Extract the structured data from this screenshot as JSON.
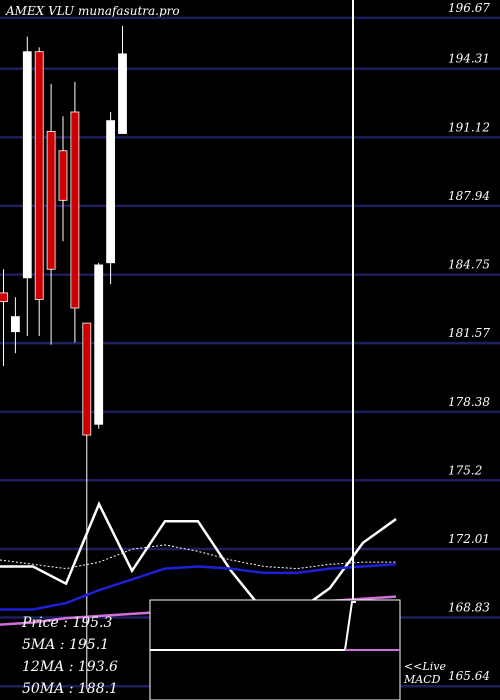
{
  "chart_data": {
    "type": "candlestick",
    "title": "AMEX  VLU munafasutra.pro",
    "y_ticks": [
      196.67,
      194.31,
      191.12,
      187.94,
      184.75,
      181.57,
      178.38,
      175.2,
      172.01,
      168.83,
      165.64
    ],
    "ylim": [
      165.0,
      197.5
    ],
    "grid": true,
    "candles": [
      {
        "open": 183.9,
        "high": 185.0,
        "low": 180.5,
        "close": 183.5
      },
      {
        "open": 182.1,
        "high": 183.7,
        "low": 181.1,
        "close": 182.8
      },
      {
        "open": 184.6,
        "high": 195.8,
        "low": 181.9,
        "close": 195.1
      },
      {
        "open": 195.1,
        "high": 195.3,
        "low": 181.9,
        "close": 183.6
      },
      {
        "open": 191.4,
        "high": 193.6,
        "low": 181.5,
        "close": 185.0
      },
      {
        "open": 190.5,
        "high": 192.1,
        "low": 186.3,
        "close": 188.2
      },
      {
        "open": 192.3,
        "high": 193.7,
        "low": 181.6,
        "close": 183.2
      },
      {
        "open": 182.5,
        "high": 182.5,
        "low": 165.5,
        "close": 177.3
      },
      {
        "open": 177.8,
        "high": 185.3,
        "low": 177.6,
        "close": 185.2
      },
      {
        "open": 185.3,
        "high": 192.3,
        "low": 184.3,
        "close": 191.9
      },
      {
        "open": 191.3,
        "high": 196.3,
        "low": 191.3,
        "close": 195.0
      }
    ],
    "price_panel_lines": [
      {
        "name": "Price",
        "color": "#ffffff",
        "width": 2.5,
        "values": [
          171.2,
          171.2,
          170.4,
          174.1,
          171.0,
          173.3,
          173.3,
          171.0,
          169.1,
          169.1,
          170.2,
          172.3,
          173.4
        ]
      },
      {
        "name": "5MA",
        "color": "#ffffff",
        "width": 1,
        "dash": "2,2",
        "values": [
          171.5,
          171.3,
          171.1,
          171.4,
          172.0,
          172.2,
          171.9,
          171.5,
          171.2,
          171.1,
          171.3,
          171.4,
          171.4
        ]
      },
      {
        "name": "12MA",
        "color": "#1f1fd8",
        "width": 2.5,
        "values": [
          169.2,
          169.2,
          169.5,
          170.1,
          170.6,
          171.1,
          171.2,
          171.1,
          170.9,
          170.9,
          171.1,
          171.2,
          171.3
        ]
      },
      {
        "name": "50MA",
        "color": "#d070d8",
        "width": 2.5,
        "values": [
          168.5,
          168.6,
          168.8,
          168.9,
          169.0,
          169.1,
          169.2,
          169.3,
          169.4,
          169.5,
          169.6,
          169.7,
          169.8
        ]
      }
    ],
    "vertical_line_x_index": 10.2,
    "macd": {
      "label_line1": "<<Live",
      "label_line2": "MACD",
      "signal_level": 0.5,
      "histogram_jump_index": 4
    },
    "legend": {
      "price_label": "Price   : 195.3",
      "ma5_label": "5MA : 195.1",
      "ma12_label": "12MA : 193.6",
      "ma50_label": "50MA : 188.1"
    }
  }
}
